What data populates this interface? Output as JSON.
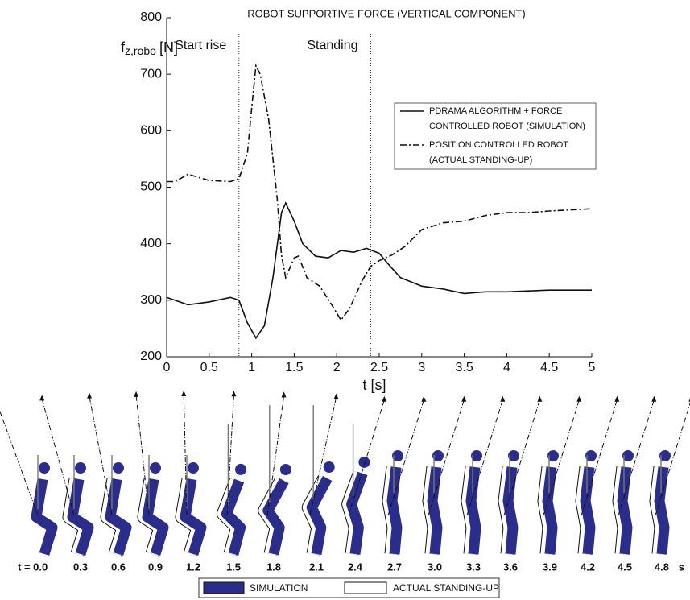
{
  "chart_data": {
    "type": "line",
    "title": "ROBOT SUPPORTIVE FORCE (VERTICAL COMPONENT)",
    "y_label": {
      "base": "f",
      "sub": "z,robo",
      "unit": "[N]"
    },
    "x_label": "t [s]",
    "xlim": [
      0,
      5
    ],
    "ylim": [
      200,
      800
    ],
    "xticks": [
      0,
      0.5,
      1,
      1.5,
      2,
      2.5,
      3,
      3.5,
      4,
      4.5,
      5
    ],
    "yticks": [
      200,
      300,
      400,
      500,
      600,
      700,
      800
    ],
    "grid": false,
    "legend": "upper right",
    "vlines": [
      0.85,
      2.4
    ],
    "annotations": [
      {
        "text": "Start rise",
        "x": 0.4
      },
      {
        "text": "Standing",
        "x": 1.95
      }
    ],
    "series": [
      {
        "name": [
          "PDRAMA ALGORITHM + FORCE",
          "CONTROLLED ROBOT (SIMULATION)"
        ],
        "color": "#111111",
        "dash": "solid",
        "x": [
          0,
          0.25,
          0.5,
          0.75,
          0.85,
          0.95,
          1.05,
          1.15,
          1.25,
          1.35,
          1.4,
          1.5,
          1.6,
          1.75,
          1.9,
          2.05,
          2.2,
          2.35,
          2.5,
          2.6,
          2.75,
          3.0,
          3.25,
          3.5,
          3.75,
          4.0,
          4.5,
          5
        ],
        "values": [
          305,
          292,
          297,
          305,
          300,
          260,
          233,
          255,
          340,
          455,
          472,
          440,
          400,
          378,
          375,
          388,
          385,
          392,
          383,
          365,
          340,
          325,
          320,
          312,
          315,
          315,
          318,
          318
        ]
      },
      {
        "name": [
          "POSITION CONTROLLED ROBOT",
          "(ACTUAL STANDING-UP)"
        ],
        "color": "#111111",
        "dash": "dashdot",
        "x": [
          0,
          0.1,
          0.25,
          0.5,
          0.75,
          0.85,
          0.95,
          1.0,
          1.05,
          1.1,
          1.2,
          1.3,
          1.35,
          1.4,
          1.5,
          1.55,
          1.65,
          1.8,
          1.95,
          2.05,
          2.15,
          2.3,
          2.4,
          2.5,
          2.65,
          2.8,
          3.0,
          3.25,
          3.5,
          3.75,
          4.0,
          4.25,
          4.5,
          4.75,
          5
        ],
        "values": [
          510,
          510,
          523,
          512,
          510,
          515,
          560,
          640,
          715,
          700,
          620,
          480,
          380,
          340,
          375,
          378,
          340,
          325,
          290,
          265,
          285,
          335,
          360,
          370,
          380,
          395,
          425,
          437,
          440,
          450,
          455,
          455,
          458,
          460,
          462
        ]
      }
    ]
  },
  "figure": {
    "times": [
      "t = 0.0",
      "0.3",
      "0.6",
      "0.9",
      "1.2",
      "1.5",
      "1.8",
      "2.1",
      "2.4",
      "2.7",
      "3.0",
      "3.3",
      "3.6",
      "3.9",
      "4.2",
      "4.5",
      "4.8"
    ],
    "unit": "s",
    "legend": [
      "SIMULATION",
      "ACTUAL STANDING-UP"
    ]
  }
}
